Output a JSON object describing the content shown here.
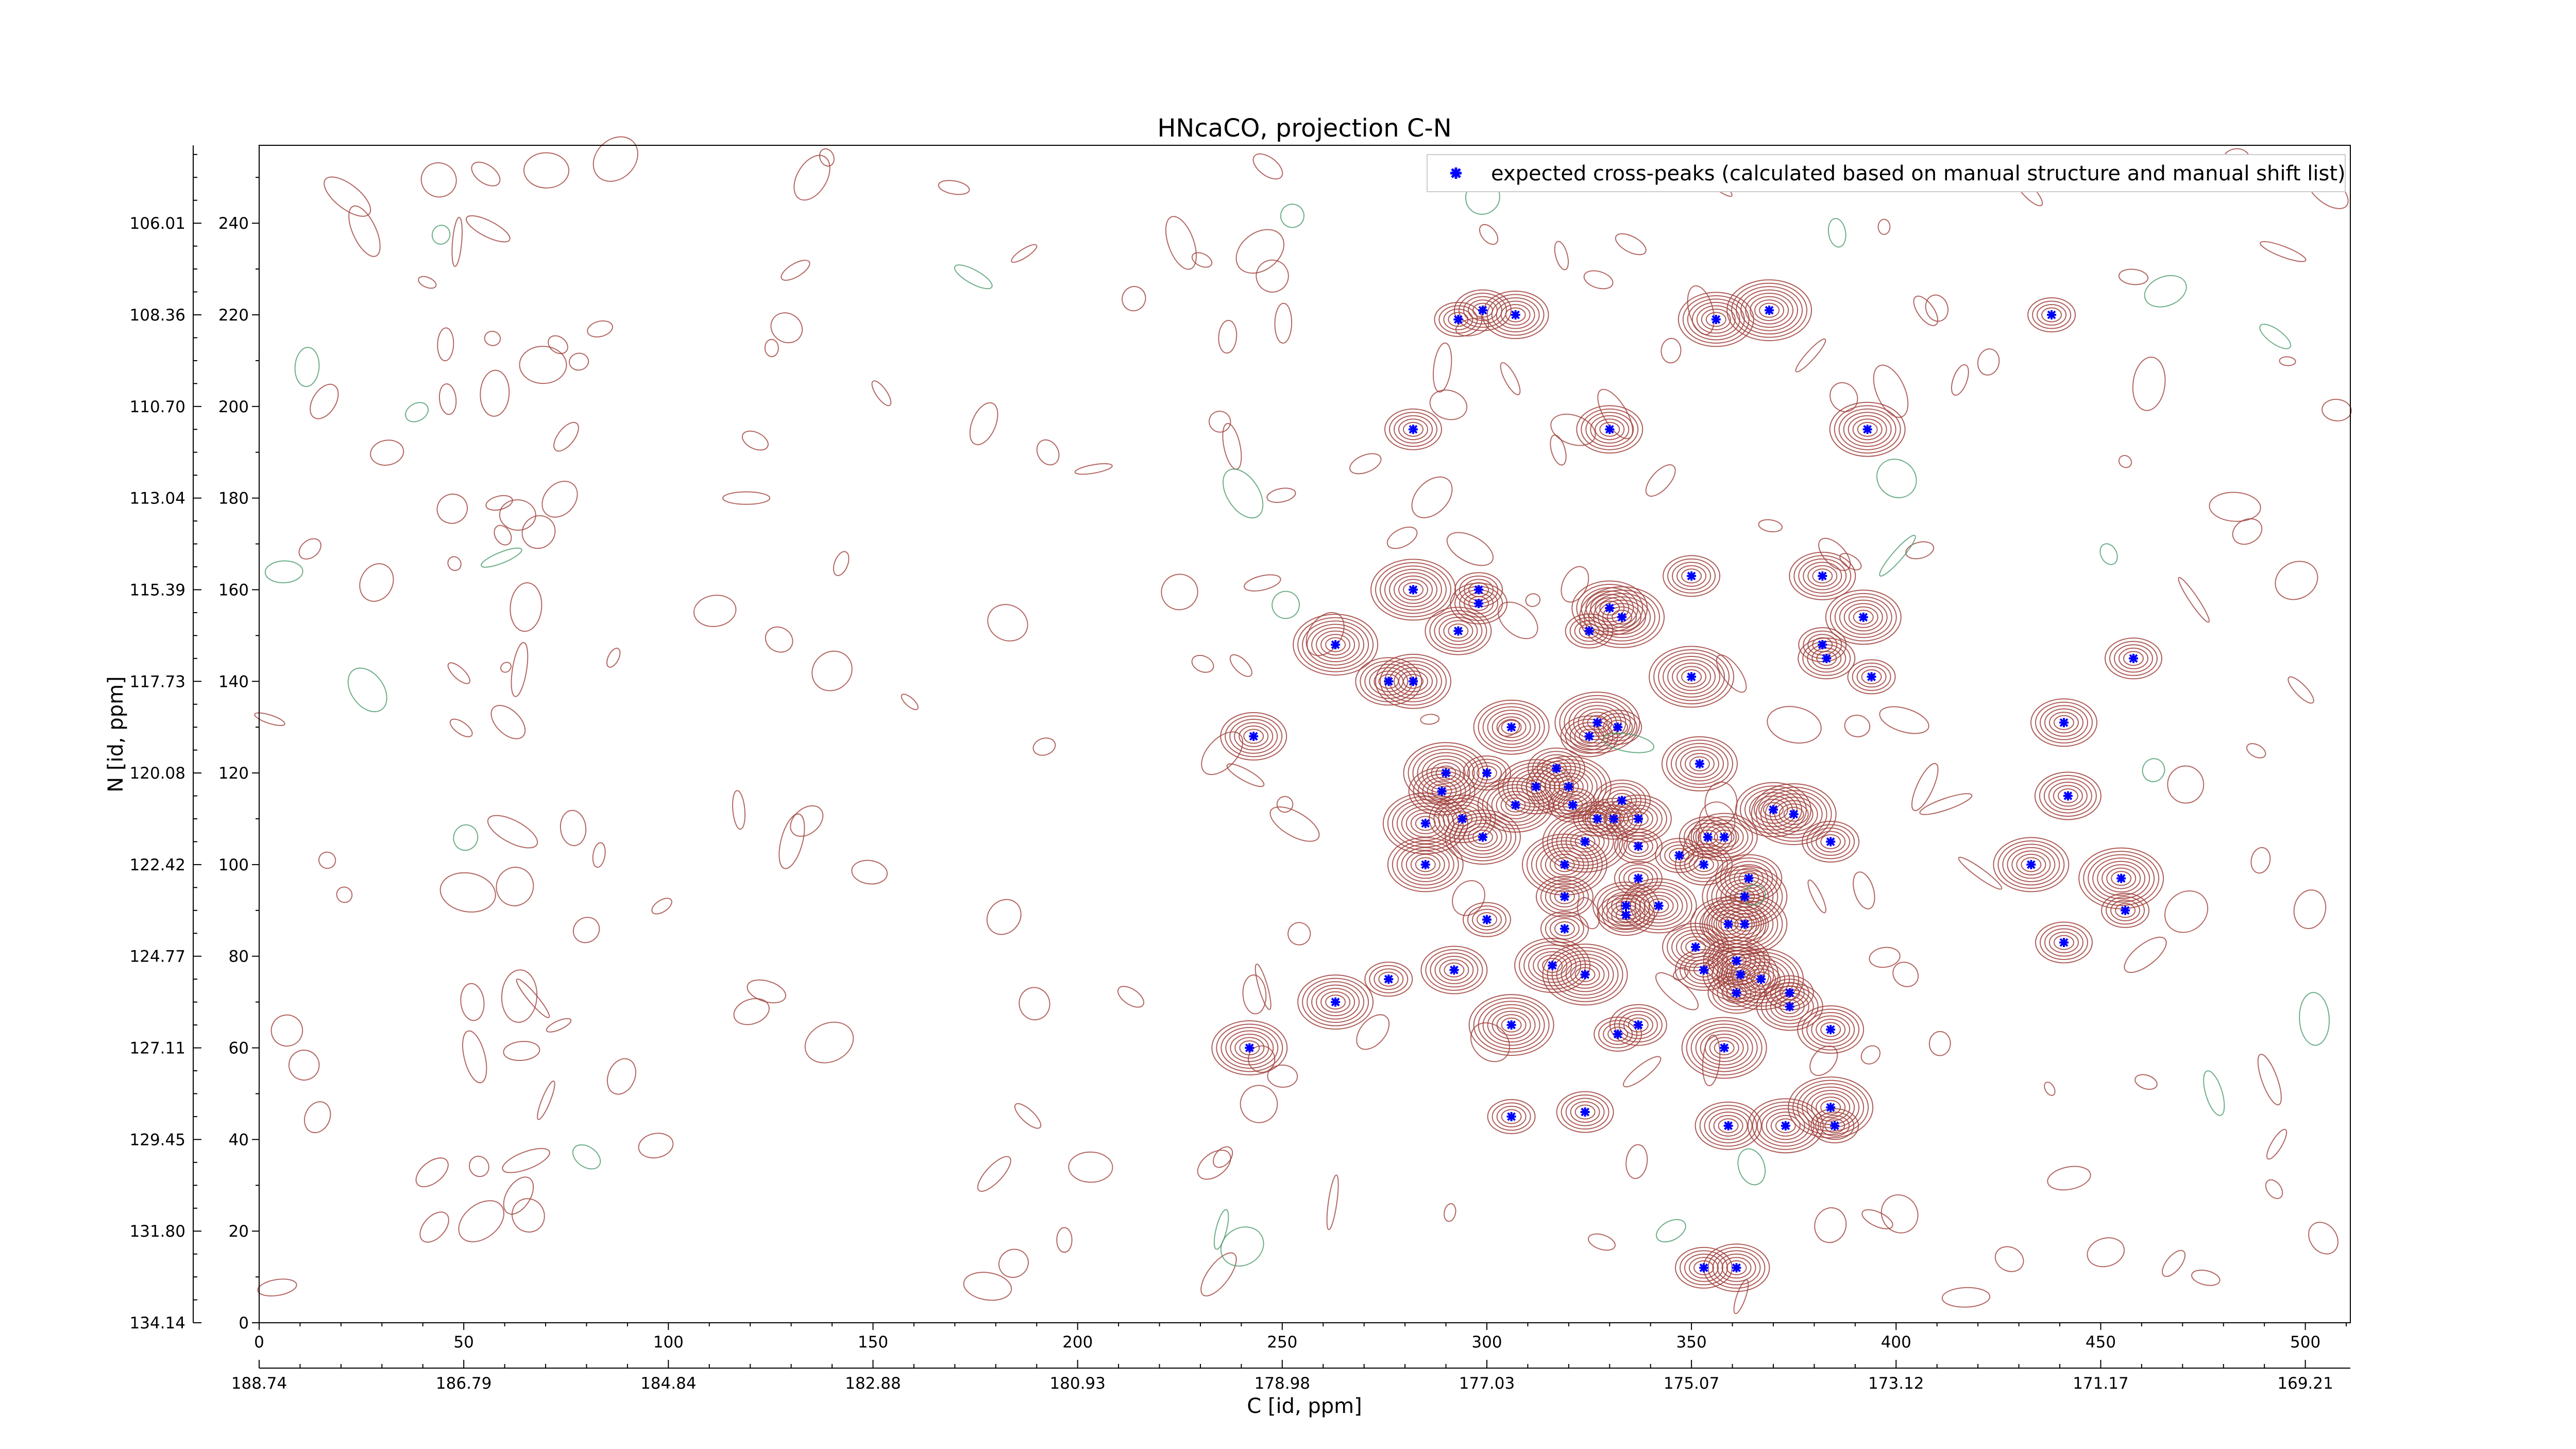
{
  "chart_data": {
    "type": "scatter",
    "title": "HNcaCO, projection C-N",
    "xlabel": "C [id, ppm]",
    "ylabel": "N [id, ppm]",
    "xlim": [
      0,
      511
    ],
    "ylim": [
      0,
      257
    ],
    "x_ticks": [
      0,
      50,
      100,
      150,
      200,
      250,
      300,
      350,
      400,
      450,
      500
    ],
    "y_ticks": [
      0,
      20,
      40,
      60,
      80,
      100,
      120,
      140,
      160,
      180,
      200,
      220,
      240
    ],
    "x_ppm_ticks": [
      "188.74",
      "186.79",
      "184.84",
      "182.88",
      "180.93",
      "178.98",
      "177.03",
      "175.07",
      "173.12",
      "171.17",
      "169.21"
    ],
    "y_ppm_ticks": [
      "134.14",
      "131.80",
      "129.45",
      "127.11",
      "124.77",
      "122.42",
      "120.08",
      "117.73",
      "115.39",
      "113.04",
      "110.70",
      "108.36",
      "106.01"
    ],
    "grid": false,
    "legend": {
      "position": "top-right",
      "entries": [
        "expected cross-peaks (calculated based on manual structure and manual shift list)"
      ]
    },
    "colors": {
      "peak_marker": "#0000ff",
      "contour_positive": "#a0413c",
      "contour_negative": "#4a9a6a",
      "axes": "#000000"
    },
    "series": [
      {
        "name": "expected cross-peaks (calculated based on manual structure and manual shift list)",
        "points": [
          [
            293,
            219
          ],
          [
            299,
            221
          ],
          [
            307,
            220
          ],
          [
            356,
            219
          ],
          [
            369,
            221
          ],
          [
            438,
            220
          ],
          [
            282,
            195
          ],
          [
            330,
            195
          ],
          [
            393,
            195
          ],
          [
            282,
            160
          ],
          [
            298,
            160
          ],
          [
            298,
            157
          ],
          [
            293,
            151
          ],
          [
            330,
            156
          ],
          [
            333,
            154
          ],
          [
            325,
            151
          ],
          [
            350,
            163
          ],
          [
            382,
            163
          ],
          [
            392,
            154
          ],
          [
            263,
            148
          ],
          [
            382,
            148
          ],
          [
            383,
            145
          ],
          [
            276,
            140
          ],
          [
            282,
            140
          ],
          [
            350,
            141
          ],
          [
            394,
            141
          ],
          [
            458,
            145
          ],
          [
            243,
            128
          ],
          [
            306,
            130
          ],
          [
            327,
            131
          ],
          [
            332,
            130
          ],
          [
            325,
            128
          ],
          [
            441,
            131
          ],
          [
            352,
            122
          ],
          [
            290,
            120
          ],
          [
            300,
            120
          ],
          [
            317,
            121
          ],
          [
            289,
            116
          ],
          [
            312,
            117
          ],
          [
            320,
            117
          ],
          [
            321,
            113
          ],
          [
            333,
            114
          ],
          [
            294,
            110
          ],
          [
            307,
            113
          ],
          [
            285,
            109
          ],
          [
            327,
            110
          ],
          [
            331,
            110
          ],
          [
            337,
            110
          ],
          [
            370,
            112
          ],
          [
            375,
            111
          ],
          [
            347,
            102
          ],
          [
            384,
            105
          ],
          [
            442,
            115
          ],
          [
            299,
            106
          ],
          [
            324,
            105
          ],
          [
            337,
            104
          ],
          [
            354,
            106
          ],
          [
            358,
            106
          ],
          [
            285,
            100
          ],
          [
            319,
            100
          ],
          [
            337,
            97
          ],
          [
            353,
            100
          ],
          [
            364,
            97
          ],
          [
            433,
            100
          ],
          [
            455,
            97
          ],
          [
            300,
            88
          ],
          [
            319,
            93
          ],
          [
            334,
            91
          ],
          [
            342,
            91
          ],
          [
            363,
            93
          ],
          [
            319,
            86
          ],
          [
            334,
            89
          ],
          [
            351,
            82
          ],
          [
            359,
            87
          ],
          [
            363,
            87
          ],
          [
            456,
            90
          ],
          [
            441,
            83
          ],
          [
            292,
            77
          ],
          [
            316,
            78
          ],
          [
            324,
            76
          ],
          [
            276,
            75
          ],
          [
            353,
            77
          ],
          [
            361,
            79
          ],
          [
            362,
            76
          ],
          [
            367,
            75
          ],
          [
            374,
            72
          ],
          [
            361,
            72
          ],
          [
            374,
            69
          ],
          [
            263,
            70
          ],
          [
            306,
            65
          ],
          [
            332,
            63
          ],
          [
            337,
            65
          ],
          [
            384,
            64
          ],
          [
            242,
            60
          ],
          [
            358,
            60
          ],
          [
            306,
            45
          ],
          [
            324,
            46
          ],
          [
            359,
            43
          ],
          [
            373,
            43
          ],
          [
            384,
            47
          ],
          [
            385,
            43
          ],
          [
            353,
            12
          ],
          [
            361,
            12
          ]
        ]
      }
    ]
  },
  "legend_label": "expected cross-peaks (calculated based on manual structure and manual shift list)"
}
